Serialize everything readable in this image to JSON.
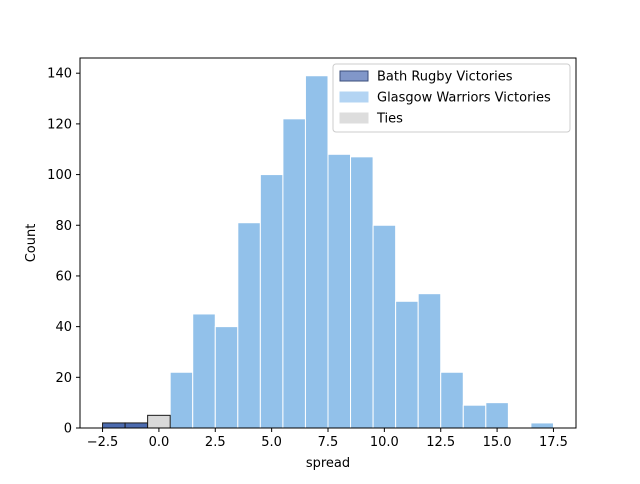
{
  "chart_data": {
    "type": "bar",
    "title": "",
    "xlabel": "spread",
    "ylabel": "Count",
    "xlim": [
      -3.5,
      18.5
    ],
    "ylim": [
      0,
      146
    ],
    "grid": false,
    "legend_position": "top-right",
    "x_ticks": [
      -2.5,
      0.0,
      2.5,
      5.0,
      7.5,
      10.0,
      12.5,
      15.0,
      17.5
    ],
    "x_tick_labels": [
      "−2.5",
      "0.0",
      "2.5",
      "5.0",
      "7.5",
      "10.0",
      "12.5",
      "15.0",
      "17.5"
    ],
    "y_ticks": [
      0,
      20,
      40,
      60,
      80,
      100,
      120,
      140
    ],
    "y_tick_labels": [
      "0",
      "20",
      "40",
      "60",
      "80",
      "100",
      "120",
      "140"
    ],
    "bin_width": 1,
    "series": [
      {
        "name": "Bath Rugby Victories",
        "color": "#4c6baf",
        "edge_color": "#1a1a1a",
        "bins": [
          {
            "x0": -2.5,
            "x1": -1.5,
            "count": 2
          },
          {
            "x0": -1.5,
            "x1": -0.5,
            "count": 2
          }
        ]
      },
      {
        "name": "Glasgow Warriors Victories",
        "color": "#92c1ea",
        "edge_color": "#ffffff",
        "bins": [
          {
            "x0": 0.5,
            "x1": 1.5,
            "count": 22
          },
          {
            "x0": 1.5,
            "x1": 2.5,
            "count": 45
          },
          {
            "x0": 2.5,
            "x1": 3.5,
            "count": 40
          },
          {
            "x0": 3.5,
            "x1": 4.5,
            "count": 81
          },
          {
            "x0": 4.5,
            "x1": 5.5,
            "count": 100
          },
          {
            "x0": 5.5,
            "x1": 6.5,
            "count": 122
          },
          {
            "x0": 6.5,
            "x1": 7.5,
            "count": 139
          },
          {
            "x0": 7.5,
            "x1": 8.5,
            "count": 108
          },
          {
            "x0": 8.5,
            "x1": 9.5,
            "count": 107
          },
          {
            "x0": 9.5,
            "x1": 10.5,
            "count": 80
          },
          {
            "x0": 10.5,
            "x1": 11.5,
            "count": 50
          },
          {
            "x0": 11.5,
            "x1": 12.5,
            "count": 53
          },
          {
            "x0": 12.5,
            "x1": 13.5,
            "count": 22
          },
          {
            "x0": 13.5,
            "x1": 14.5,
            "count": 9
          },
          {
            "x0": 14.5,
            "x1": 15.5,
            "count": 10
          },
          {
            "x0": 15.5,
            "x1": 16.5,
            "count": 0
          },
          {
            "x0": 16.5,
            "x1": 17.5,
            "count": 2
          }
        ]
      },
      {
        "name": "Ties",
        "color": "#d9d9d9",
        "edge_color": "#1a1a1a",
        "bins": [
          {
            "x0": -0.5,
            "x1": 0.5,
            "count": 5
          }
        ]
      }
    ],
    "legend": [
      {
        "label": "Bath Rugby Victories",
        "color": "#8197c9",
        "edge_color": "#3a4d7a"
      },
      {
        "label": "Glasgow Warriors Victories",
        "color": "#b3d4f3",
        "edge_color": "#b3d4f3"
      },
      {
        "label": "Ties",
        "color": "#dddddd",
        "edge_color": "#dddddd"
      }
    ]
  }
}
